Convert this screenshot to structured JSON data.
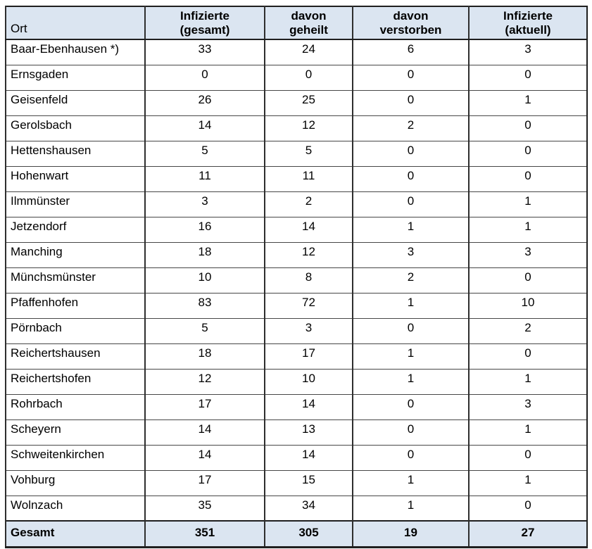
{
  "colors": {
    "header_bg": "#dbe5f1",
    "border": "#1f1f1f"
  },
  "table": {
    "header": {
      "ort": "Ort",
      "cols": [
        {
          "line1": "Infizierte",
          "line2": "(gesamt)"
        },
        {
          "line1": "davon",
          "line2": "geheilt"
        },
        {
          "line1": "davon",
          "line2": "verstorben"
        },
        {
          "line1": "Infizierte",
          "line2": "(aktuell)"
        }
      ]
    },
    "rows": [
      {
        "name": "Baar-Ebenhausen *)",
        "values": [
          "33",
          "24",
          "6",
          "3"
        ]
      },
      {
        "name": "Ernsgaden",
        "values": [
          "0",
          "0",
          "0",
          "0"
        ]
      },
      {
        "name": "Geisenfeld",
        "values": [
          "26",
          "25",
          "0",
          "1"
        ]
      },
      {
        "name": "Gerolsbach",
        "values": [
          "14",
          "12",
          "2",
          "0"
        ]
      },
      {
        "name": "Hettenshausen",
        "values": [
          "5",
          "5",
          "0",
          "0"
        ]
      },
      {
        "name": "Hohenwart",
        "values": [
          "11",
          "11",
          "0",
          "0"
        ]
      },
      {
        "name": "Ilmmünster",
        "values": [
          "3",
          "2",
          "0",
          "1"
        ]
      },
      {
        "name": "Jetzendorf",
        "values": [
          "16",
          "14",
          "1",
          "1"
        ]
      },
      {
        "name": "Manching",
        "values": [
          "18",
          "12",
          "3",
          "3"
        ]
      },
      {
        "name": "Münchsmünster",
        "values": [
          "10",
          "8",
          "2",
          "0"
        ]
      },
      {
        "name": "Pfaffenhofen",
        "values": [
          "83",
          "72",
          "1",
          "10"
        ]
      },
      {
        "name": "Pörnbach",
        "values": [
          "5",
          "3",
          "0",
          "2"
        ]
      },
      {
        "name": "Reichertshausen",
        "values": [
          "18",
          "17",
          "1",
          "0"
        ]
      },
      {
        "name": "Reichertshofen",
        "values": [
          "12",
          "10",
          "1",
          "1"
        ]
      },
      {
        "name": "Rohrbach",
        "values": [
          "17",
          "14",
          "0",
          "3"
        ]
      },
      {
        "name": "Scheyern",
        "values": [
          "14",
          "13",
          "0",
          "1"
        ]
      },
      {
        "name": "Schweitenkirchen",
        "values": [
          "14",
          "14",
          "0",
          "0"
        ]
      },
      {
        "name": "Vohburg",
        "values": [
          "17",
          "15",
          "1",
          "1"
        ]
      },
      {
        "name": "Wolnzach",
        "values": [
          "35",
          "34",
          "1",
          "0"
        ]
      }
    ],
    "footer": {
      "label": "Gesamt",
      "values": [
        "351",
        "305",
        "19",
        "27"
      ]
    }
  }
}
